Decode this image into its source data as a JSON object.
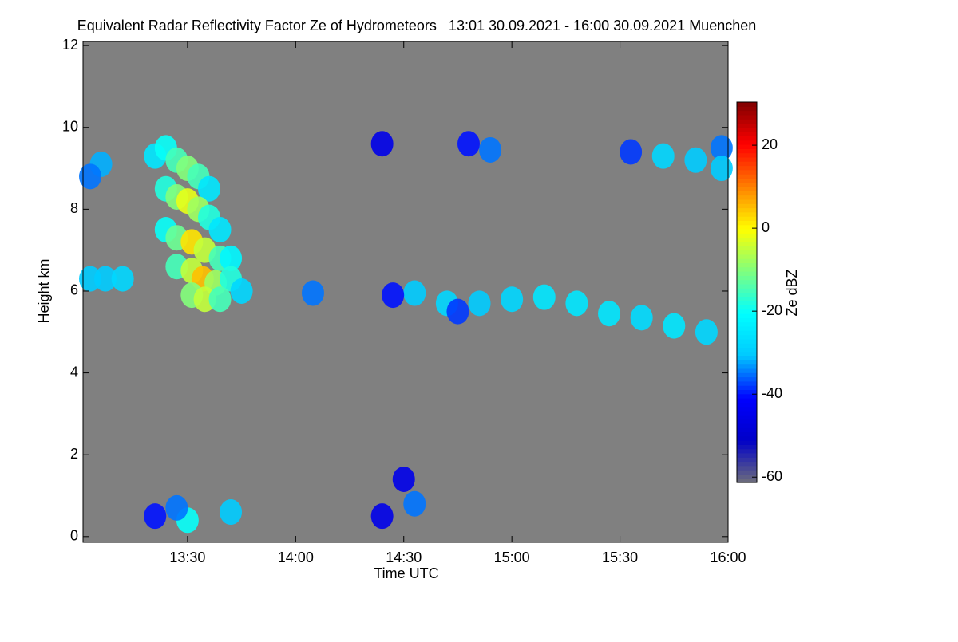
{
  "chart_data": {
    "type": "heatmap",
    "title": "Equivalent Radar Reflectivity Factor Ze of Hydrometeors   13:01 30.09.2021 - 16:00 30.09.2021 Muenchen",
    "x_label": "Time UTC",
    "y_label": "Height km",
    "colorbar_label": "Ze dBZ",
    "background": "#808080",
    "colormap": [
      "#6e6e7a",
      "#0000c8",
      "#0000ff",
      "#00c8ff",
      "#00ffff",
      "#7fff7f",
      "#ffff00",
      "#ff8000",
      "#ff0000",
      "#800000"
    ],
    "xlim": [
      13.0167,
      16.0
    ],
    "xticks": [
      {
        "value": 13.5,
        "label": "13:30"
      },
      {
        "value": 14.0,
        "label": "14:00"
      },
      {
        "value": 14.5,
        "label": "14:30"
      },
      {
        "value": 15.0,
        "label": "15:00"
      },
      {
        "value": 15.5,
        "label": "15:30"
      },
      {
        "value": 16.0,
        "label": "16:00"
      }
    ],
    "ylim": [
      -0.14,
      12.1
    ],
    "yticks": [
      0,
      2,
      4,
      6,
      8,
      10,
      12
    ],
    "clim": [
      -61.3,
      30.4
    ],
    "cticks": [
      -60,
      -40,
      -20,
      0,
      20
    ],
    "x": [
      13.35,
      13.4,
      13.45,
      13.5,
      13.55,
      13.6,
      13.4,
      13.45,
      13.5,
      13.55,
      13.6,
      13.65,
      13.4,
      13.45,
      13.52,
      13.58,
      13.65,
      13.7,
      13.45,
      13.52,
      13.57,
      13.63,
      13.7,
      13.52,
      13.58,
      13.65,
      13.75,
      13.05,
      13.12,
      13.2,
      13.1,
      13.05,
      14.55,
      14.7,
      14.85,
      15.0,
      15.15,
      15.3,
      15.45,
      15.6,
      15.75,
      15.9,
      14.75,
      14.8,
      14.9,
      15.55,
      15.7,
      15.85,
      15.97,
      15.97,
      14.4,
      14.45,
      14.08,
      13.5,
      13.45,
      13.35,
      14.5,
      14.55,
      14.4,
      13.7
    ],
    "y": [
      9.3,
      9.5,
      9.2,
      9.0,
      8.8,
      8.5,
      8.5,
      8.3,
      8.2,
      8.0,
      7.8,
      7.5,
      7.5,
      7.3,
      7.2,
      7.0,
      6.8,
      6.8,
      6.6,
      6.5,
      6.3,
      6.2,
      6.3,
      5.9,
      5.8,
      5.8,
      6.0,
      6.3,
      6.3,
      6.3,
      9.1,
      8.8,
      5.95,
      5.7,
      5.7,
      5.8,
      5.85,
      5.7,
      5.45,
      5.35,
      5.15,
      5.0,
      5.5,
      9.6,
      9.45,
      9.4,
      9.3,
      9.2,
      9.5,
      9.0,
      9.6,
      5.9,
      5.95,
      0.4,
      0.7,
      0.5,
      1.4,
      0.8,
      0.5,
      0.6
    ],
    "values": [
      -25,
      -20,
      -15,
      -10,
      -15,
      -25,
      -18,
      -10,
      -2,
      -8,
      -18,
      -25,
      -20,
      -12,
      2,
      -5,
      -15,
      -22,
      -15,
      -5,
      5,
      -8,
      -18,
      -10,
      -5,
      -15,
      -28,
      -30,
      -30,
      -28,
      -32,
      -35,
      -30,
      -28,
      -30,
      -28,
      -25,
      -25,
      -25,
      -27,
      -25,
      -28,
      -38,
      -40,
      -35,
      -38,
      -28,
      -30,
      -35,
      -30,
      -45,
      -40,
      -35,
      -20,
      -35,
      -40,
      -45,
      -35,
      -45,
      -30
    ]
  }
}
